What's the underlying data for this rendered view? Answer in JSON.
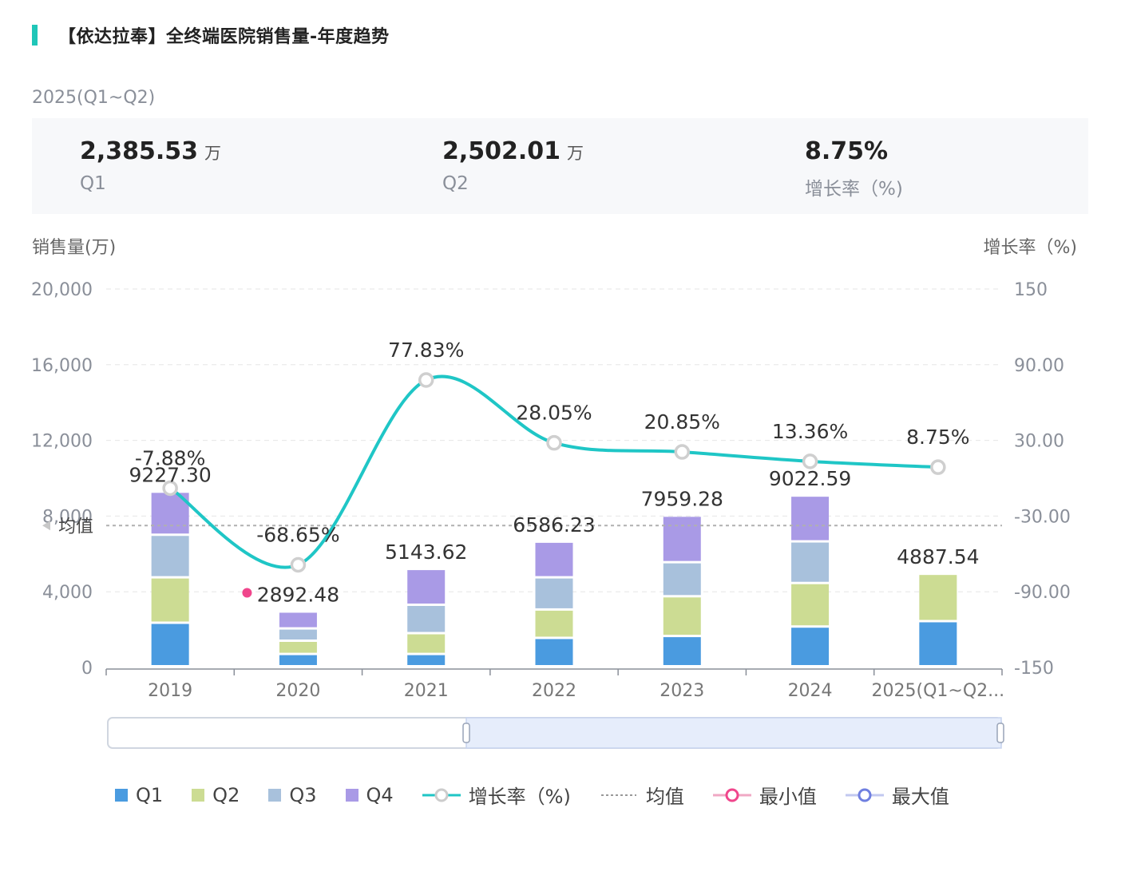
{
  "title": "【依达拉奉】全终端医院销售量-年度趋势",
  "period_label": "2025(Q1~Q2)",
  "summary": {
    "q1": {
      "value": "2,385.53",
      "unit": "万",
      "label": "Q1"
    },
    "q2": {
      "value": "2,502.01",
      "unit": "万",
      "label": "Q2"
    },
    "growth": {
      "value": "8.75%",
      "label": "增长率（%)"
    }
  },
  "axis": {
    "left_title": "销售量(万)",
    "right_title": "增长率（%)"
  },
  "mean_label": "均值",
  "legend": {
    "q1": "Q1",
    "q2": "Q2",
    "q3": "Q3",
    "q4": "Q4",
    "growth": "增长率（%)",
    "mean": "均值",
    "min": "最小值",
    "max": "最大值"
  },
  "colors": {
    "q1": "#4a9be0",
    "q2": "#ccdc93",
    "q3": "#a8c1dc",
    "q4": "#a99ae6",
    "growth": "#1fc6c6",
    "mean": "#b0b0b0",
    "min": "#f0468c",
    "max": "#6f7fe0",
    "accent": "#1fc6b8"
  },
  "chart_data": {
    "type": "bar",
    "stacked": true,
    "title": "【依达拉奉】全终端医院销售量-年度趋势",
    "categories": [
      "2019",
      "2020",
      "2021",
      "2022",
      "2023",
      "2024",
      "2025(Q1~Q2..."
    ],
    "series": [
      {
        "name": "Q1",
        "values": [
          2300,
          650,
          650,
          1500,
          1600,
          2100,
          2385.53
        ]
      },
      {
        "name": "Q2",
        "values": [
          2400,
          700,
          1100,
          1500,
          2100,
          2300,
          2502.01
        ]
      },
      {
        "name": "Q3",
        "values": [
          2250,
          650,
          1500,
          1700,
          1800,
          2200,
          0
        ]
      },
      {
        "name": "Q4",
        "values": [
          2277.3,
          892.48,
          1893.62,
          1886.23,
          2459.28,
          2422.59,
          0
        ]
      }
    ],
    "totals": [
      9227.3,
      2892.48,
      5143.62,
      6586.23,
      7959.28,
      9022.59,
      4887.54
    ],
    "total_labels": [
      "9227.30",
      "2892.48",
      "5143.62",
      "6586.23",
      "7959.28",
      "9022.59",
      "4887.54"
    ],
    "growth": {
      "name": "增长率（%)",
      "values": [
        -7.88,
        -68.65,
        77.83,
        28.05,
        20.85,
        13.36,
        8.75
      ],
      "labels": [
        "-7.88%",
        "-68.65%",
        "77.83%",
        "28.05%",
        "20.85%",
        "13.36%",
        "8.75%"
      ]
    },
    "mean_value": 7500,
    "min_index": 1,
    "ylabel": "销售量(万)",
    "y2label": "增长率（%)",
    "ylim": [
      0,
      20000
    ],
    "yticks": [
      0,
      4000,
      8000,
      12000,
      16000,
      20000
    ],
    "ytick_labels": [
      "0",
      "4,000",
      "8,000",
      "12,000",
      "16,000",
      "20,000"
    ],
    "y2lim": [
      -150,
      150
    ],
    "y2ticks": [
      -150,
      -90,
      -30,
      30,
      90,
      150
    ],
    "y2tick_labels": [
      "-150",
      "-90.00",
      "-30.00",
      "30.00",
      "90.00",
      "150"
    ]
  }
}
